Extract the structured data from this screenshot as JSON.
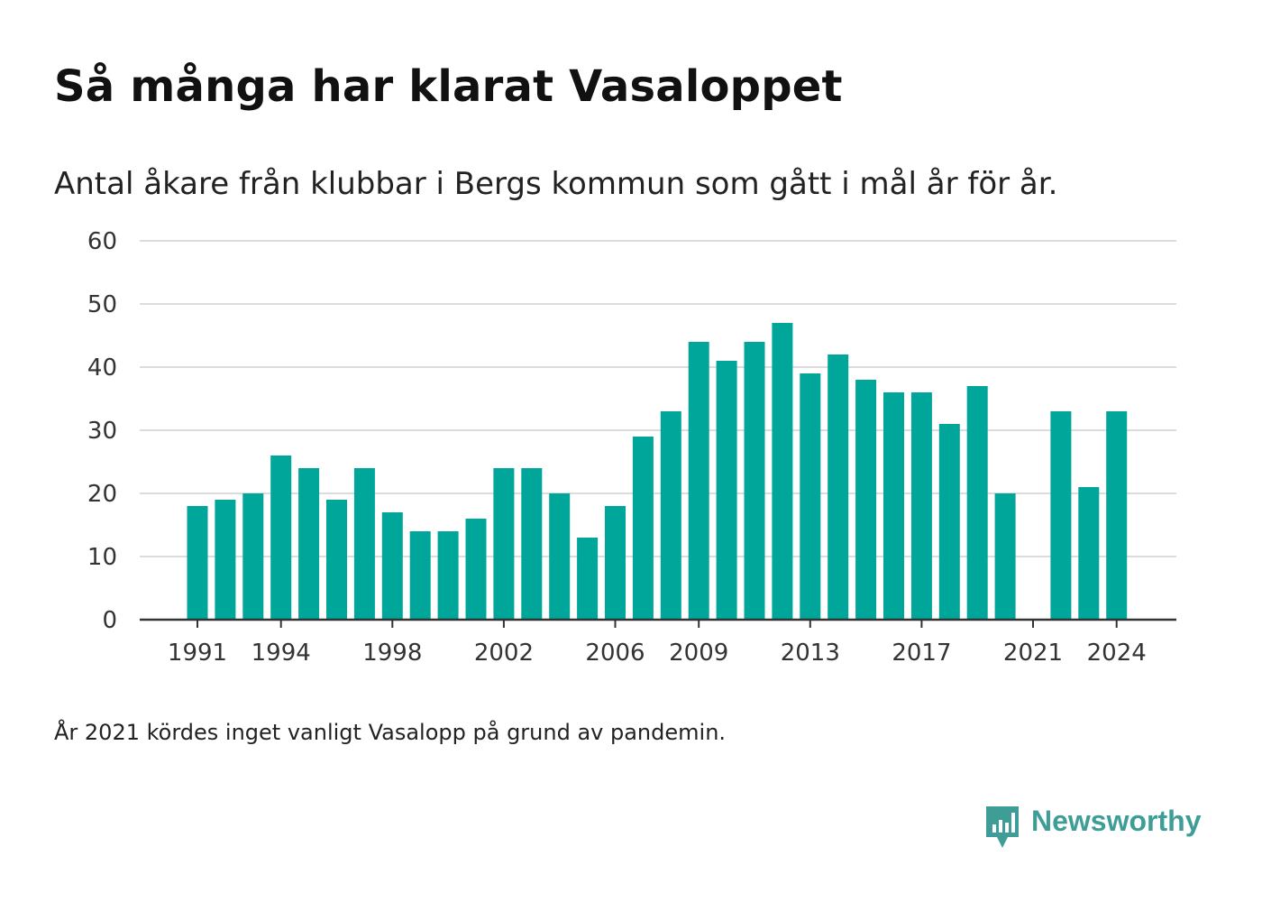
{
  "title": "Så många har klarat Vasaloppet",
  "subtitle": "Antal åkare från klubbar i Bergs kommun som gått i mål år för år.",
  "note": "År 2021 kördes inget vanligt Vasalopp på grund av pandemin.",
  "brand": {
    "name": "Newsworthy",
    "icon": "newsworthy-logo-icon",
    "color": "#3e9e97"
  },
  "chart_data": {
    "type": "bar",
    "bar_color": "#00a699",
    "categories": [
      1991,
      1992,
      1993,
      1994,
      1995,
      1996,
      1997,
      1998,
      1999,
      2000,
      2001,
      2002,
      2003,
      2004,
      2005,
      2006,
      2007,
      2008,
      2009,
      2010,
      2011,
      2012,
      2013,
      2014,
      2015,
      2016,
      2017,
      2018,
      2019,
      2020,
      2021,
      2022,
      2023,
      2024
    ],
    "values": [
      18,
      19,
      20,
      26,
      24,
      19,
      24,
      17,
      14,
      14,
      16,
      24,
      24,
      20,
      13,
      18,
      29,
      33,
      44,
      41,
      44,
      47,
      39,
      42,
      38,
      36,
      36,
      31,
      37,
      20,
      null,
      33,
      21,
      33
    ],
    "x_ticks": [
      1991,
      1994,
      1998,
      2002,
      2006,
      2009,
      2013,
      2017,
      2021,
      2024
    ],
    "y_ticks": [
      0,
      10,
      20,
      30,
      40,
      50,
      60
    ],
    "ylim": [
      0,
      60
    ],
    "grid": true,
    "xlabel": "",
    "ylabel": ""
  }
}
